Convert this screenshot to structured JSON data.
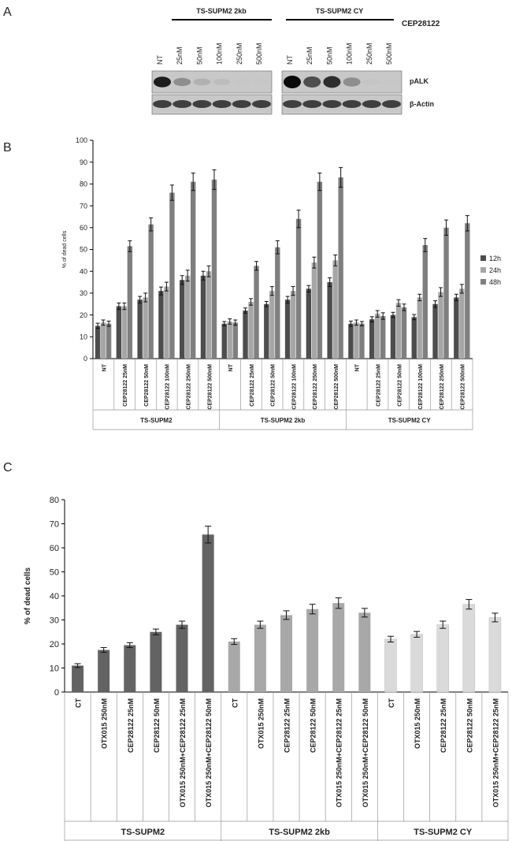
{
  "panel_a": {
    "letter": "A",
    "group_left": "TS-SUPM2 2kb",
    "group_right": "TS-SUPM2 CY",
    "drug": "CEP28122",
    "lanes": [
      "NT",
      "25nM",
      "50nM",
      "100nM",
      "250nM",
      "500nM"
    ],
    "row_labels": [
      "pALK",
      "β-Actin"
    ],
    "palk_intensity_left": [
      0.95,
      0.55,
      0.35,
      0.25,
      0.08,
      0.06
    ],
    "palk_intensity_right": [
      1.0,
      0.8,
      0.9,
      0.55,
      0.12,
      0.05
    ],
    "actin_intensity": [
      0.85,
      0.85,
      0.85,
      0.85,
      0.85,
      0.85
    ]
  },
  "chart_data": [
    {
      "panel": "B",
      "type": "bar",
      "ylabel": "% of dead cells",
      "ylim": [
        0,
        100
      ],
      "yticks": [
        0,
        10,
        20,
        30,
        40,
        50,
        60,
        70,
        80,
        90,
        100
      ],
      "groups": [
        "TS-SUPM2",
        "TS-SUPM2 2kb",
        "TS-SUPM2 CY"
      ],
      "categories": [
        "NT",
        "CEP28122 25nM",
        "CEP28122 50nM",
        "CEP28122 100nM",
        "CEP28122 250nM",
        "CEP28122 500nM",
        "NT",
        "CEP28122 25nM",
        "CEP28122 50nM",
        "CEP28122 100nM",
        "CEP28122 250nM",
        "CEP28122 500nM",
        "NT",
        "CEP28122 25nM",
        "CEP28122 50nM",
        "CEP28122 100nM",
        "CEP28122 250nM",
        "CEP28122 500nM"
      ],
      "legend": "right",
      "series": [
        {
          "name": "12h",
          "color": "#4d4d4d",
          "values": [
            15,
            24,
            27,
            31,
            36,
            38,
            16,
            22,
            25,
            27,
            32,
            35,
            16,
            18,
            20,
            19,
            25,
            28
          ],
          "errors": [
            1.2,
            1.5,
            1.5,
            1.8,
            2,
            2,
            1,
            1.2,
            1.2,
            1.5,
            1.5,
            2,
            1.2,
            1.2,
            1.2,
            1.2,
            1.5,
            1.5
          ]
        },
        {
          "name": "24h",
          "color": "#a6a6a6",
          "values": [
            16.5,
            24,
            28,
            33,
            38,
            40,
            17,
            26,
            31,
            31,
            44,
            45,
            16.5,
            20.5,
            25.5,
            28,
            30.5,
            32
          ],
          "errors": [
            1.2,
            1.5,
            2,
            2,
            2.5,
            2.5,
            1.2,
            1.5,
            2,
            2,
            2.5,
            2.5,
            1.2,
            1.5,
            1.5,
            1.5,
            2,
            2
          ]
        },
        {
          "name": "48h",
          "color": "#7f7f7f",
          "values": [
            16,
            51.5,
            61.5,
            76,
            81,
            82,
            16.5,
            42.5,
            51,
            64,
            81,
            83,
            16,
            19.5,
            23.5,
            52,
            60,
            62
          ],
          "errors": [
            1.2,
            2.5,
            3,
            3.5,
            4,
            4.5,
            1.2,
            2,
            3,
            4,
            4,
            4.5,
            1,
            1.5,
            1.5,
            3,
            3.5,
            3.5
          ]
        }
      ]
    },
    {
      "panel": "C",
      "type": "bar",
      "ylabel": "% of dead cells",
      "ylim": [
        0,
        80
      ],
      "yticks": [
        0,
        10,
        20,
        30,
        40,
        50,
        60,
        70,
        80
      ],
      "groups": [
        "TS-SUPM2",
        "TS-SUPM2 2kb",
        "TS-SUPM2 CY"
      ],
      "categories": [
        "CT",
        "OTX015 250nM",
        "CEP28122 25nM",
        "CEP28122 50nM",
        "OTX015 250nM+CEP28122 25nM",
        "OTX015 250nM+CEP28122 50nM",
        "CT",
        "OTX015 250nM",
        "CEP28122 25nM",
        "CEP28122 50nM",
        "OTX015 250nM+CEP28122 25nM",
        "OTX015 250nM+CEP28122 50nM",
        "CT",
        "OTX015 250nM",
        "CEP28122 25nM",
        "CEP28122 50nM",
        "OTX015 250nM+CEP28122 25nM"
      ],
      "values": [
        11,
        17.5,
        19.5,
        25,
        28,
        65.5,
        21,
        28,
        32,
        34.5,
        37,
        33,
        22,
        24,
        28,
        36.5,
        31
      ],
      "errors": [
        0.8,
        1,
        1,
        1.2,
        1.5,
        3.5,
        1.2,
        1.5,
        1.8,
        2,
        2.2,
        1.8,
        1.2,
        1.2,
        1.5,
        2,
        1.8
      ],
      "group_colors": [
        "#636363",
        "#a8a8a8",
        "#dadada"
      ]
    }
  ],
  "panel_letters": {
    "b": "B",
    "c": "C"
  }
}
